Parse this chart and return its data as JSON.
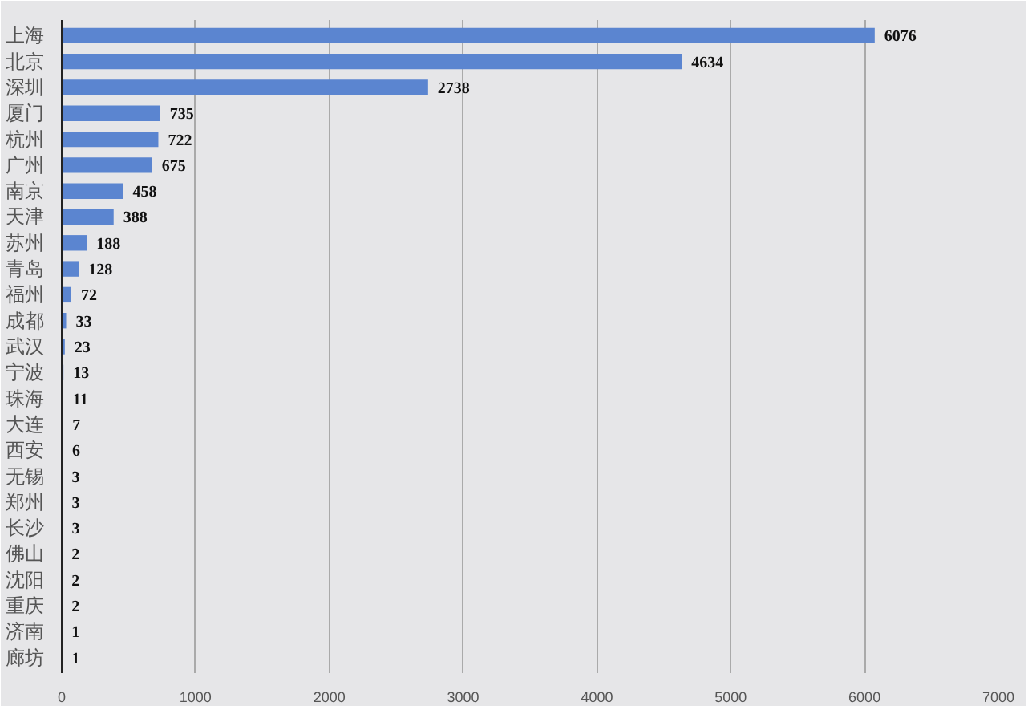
{
  "chart_data": {
    "type": "bar",
    "orientation": "horizontal",
    "categories": [
      "上海",
      "北京",
      "深圳",
      "厦门",
      "杭州",
      "广州",
      "南京",
      "天津",
      "苏州",
      "青岛",
      "福州",
      "成都",
      "武汉",
      "宁波",
      "珠海",
      "大连",
      "西安",
      "无锡",
      "郑州",
      "长沙",
      "佛山",
      "沈阳",
      "重庆",
      "济南",
      "廊坊"
    ],
    "values": [
      6076,
      4634,
      2738,
      735,
      722,
      675,
      458,
      388,
      188,
      128,
      72,
      33,
      23,
      13,
      11,
      7,
      6,
      3,
      3,
      3,
      2,
      2,
      2,
      1,
      1
    ],
    "color": "#5b85d0",
    "data_labels": true,
    "grid": "x",
    "xlim": [
      0,
      7000
    ],
    "xticks": [
      0,
      1000,
      2000,
      3000,
      4000,
      5000,
      6000,
      7000
    ]
  }
}
